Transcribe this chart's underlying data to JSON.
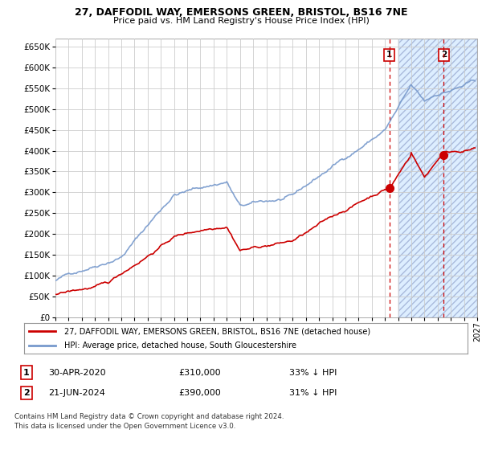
{
  "title": "27, DAFFODIL WAY, EMERSONS GREEN, BRISTOL, BS16 7NE",
  "subtitle": "Price paid vs. HM Land Registry's House Price Index (HPI)",
  "yticks": [
    0,
    50000,
    100000,
    150000,
    200000,
    250000,
    300000,
    350000,
    400000,
    450000,
    500000,
    550000,
    600000,
    650000
  ],
  "xlim_start": 1995.0,
  "xlim_end": 2027.0,
  "ylim_min": 0,
  "ylim_max": 670000,
  "hpi_color": "#7799cc",
  "price_color": "#cc0000",
  "purchase1_x": 2020.33,
  "purchase1_y": 310000,
  "purchase1_label": "1",
  "purchase2_x": 2024.47,
  "purchase2_y": 390000,
  "purchase2_label": "2",
  "annotation1_date": "30-APR-2020",
  "annotation1_price": "£310,000",
  "annotation1_note": "33% ↓ HPI",
  "annotation2_date": "21-JUN-2024",
  "annotation2_price": "£390,000",
  "annotation2_note": "31% ↓ HPI",
  "legend_label1": "27, DAFFODIL WAY, EMERSONS GREEN, BRISTOL, BS16 7NE (detached house)",
  "legend_label2": "HPI: Average price, detached house, South Gloucestershire",
  "footnote": "Contains HM Land Registry data © Crown copyright and database right 2024.\nThis data is licensed under the Open Government Licence v3.0.",
  "shaded_region_color": "#ddeeff",
  "grid_color": "#cccccc",
  "background_color": "#ffffff"
}
